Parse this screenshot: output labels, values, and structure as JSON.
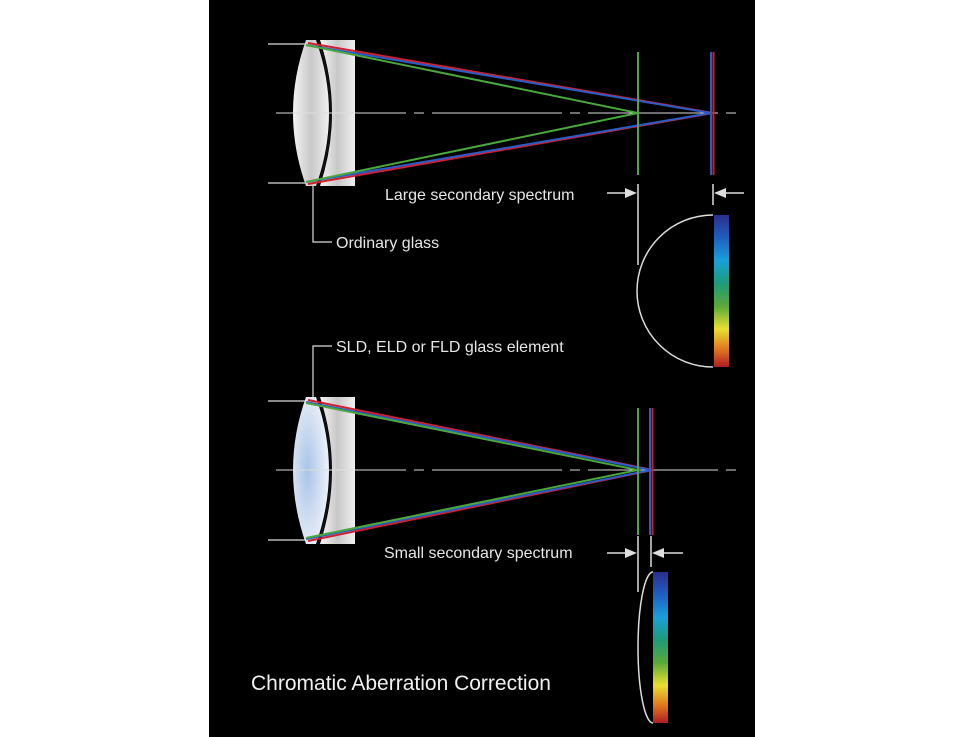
{
  "title": "Chromatic Aberration Correction",
  "top": {
    "spectrum_label": "Large secondary spectrum",
    "lens_label": "Ordinary glass"
  },
  "bottom": {
    "spectrum_label": "Small secondary spectrum",
    "lens_label": "SLD, ELD or FLD glass element"
  },
  "colors": {
    "background": "#000000",
    "red": "#d0202e",
    "green": "#4aa83c",
    "blue": "#2a5cc8",
    "line": "#e0e0e0"
  }
}
